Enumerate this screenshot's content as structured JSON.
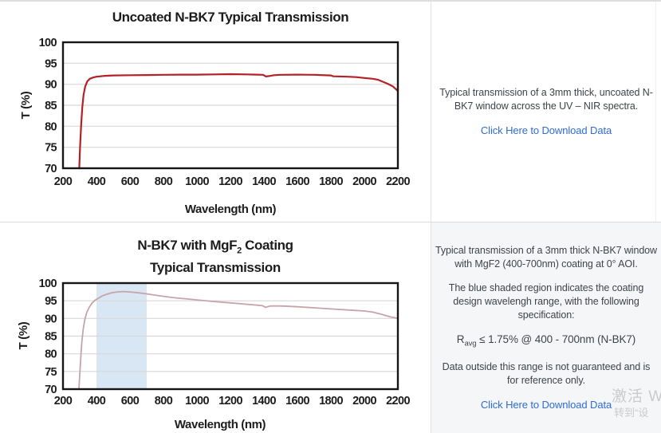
{
  "colors": {
    "uncoated_curve": "#b42025",
    "coated_curve": "#c7a4a9",
    "shaded_region": "#d8e7f3",
    "gridline": "#d8d8d8",
    "plot_border": "#161616",
    "link": "#2f6bd9",
    "body_text": "#3f434a",
    "bottom_cell_bg": "#f5f6f7"
  },
  "right_top": {
    "description": "Typical transmission of a 3mm thick, uncoated N-BK7 window across the UV – NIR spectra.",
    "link": "Click Here to Download Data"
  },
  "right_bottom": {
    "p1": "Typical transmission of a 3mm thick N-BK7 window with MgF2 (400-700nm) coating at 0° AOI.",
    "p2": "The blue shaded region indicates the coating design wavelengh range, with the following specification:",
    "spec_pre": "R",
    "spec_sub": "avg",
    "spec_post": " ≤ 1.75% @ 400 - 700nm (N-BK7)",
    "p4": "Data outside this range is not guaranteed and is for reference only.",
    "link": "Click Here to Download Data"
  },
  "watermark": {
    "line1": "激活 W",
    "line2": "转到“设"
  },
  "chart_data": [
    {
      "type": "line",
      "title": "Uncoated N-BK7 Typical Transmission",
      "xlabel": "Wavelength (nm)",
      "ylabel": "T (%)",
      "xlim": [
        200,
        2200
      ],
      "ylim": [
        70,
        100
      ],
      "xticks": [
        200,
        400,
        600,
        800,
        1000,
        1200,
        1400,
        1600,
        1800,
        2000,
        2200
      ],
      "yticks": [
        70,
        75,
        80,
        85,
        90,
        95,
        100
      ],
      "grid": "horizontal-only",
      "legend": "none",
      "line_color": "#b42025",
      "line_width": 2.2,
      "series": [
        {
          "name": "Uncoated N-BK7 transmission",
          "x": [
            297,
            302,
            308,
            315,
            323,
            333,
            345,
            360,
            380,
            400,
            450,
            500,
            600,
            700,
            800,
            900,
            1000,
            1100,
            1200,
            1300,
            1360,
            1395,
            1412,
            1430,
            1460,
            1500,
            1600,
            1700,
            1800,
            1815,
            1900,
            1950,
            2000,
            2050,
            2080,
            2110,
            2140,
            2170,
            2200
          ],
          "y": [
            70,
            75,
            80,
            84.5,
            87.5,
            89.5,
            90.7,
            91.3,
            91.6,
            91.8,
            92.0,
            92.1,
            92.15,
            92.2,
            92.25,
            92.3,
            92.3,
            92.35,
            92.4,
            92.35,
            92.3,
            92.25,
            91.85,
            91.95,
            92.15,
            92.25,
            92.3,
            92.25,
            92.1,
            91.9,
            91.8,
            91.7,
            91.5,
            91.3,
            91.1,
            90.6,
            90.1,
            89.5,
            88.4
          ]
        }
      ]
    },
    {
      "type": "line",
      "title": "N-BK7 with MgF2 Coating Typical Transmission",
      "title_display": {
        "pre": "N-BK7 with MgF",
        "sub": "2",
        "post": " Coating",
        "line2": "Typical Transmission"
      },
      "xlabel": "Wavelength (nm)",
      "ylabel": "T (%)",
      "xlim": [
        200,
        2200
      ],
      "ylim": [
        70,
        100
      ],
      "xticks": [
        200,
        400,
        600,
        800,
        1000,
        1200,
        1400,
        1600,
        1800,
        2000,
        2200
      ],
      "yticks": [
        70,
        75,
        80,
        85,
        90,
        95,
        100
      ],
      "grid": "horizontal-only",
      "legend": "none",
      "line_color": "#c7a4a9",
      "line_width": 1.8,
      "shaded_region": {
        "x": [
          400,
          700
        ],
        "color": "#d8e7f3",
        "label": "coating design wavelength range"
      },
      "series": [
        {
          "name": "N-BK7 with MgF2 coating transmission",
          "x": [
            295,
            300,
            306,
            313,
            321,
            331,
            343,
            357,
            373,
            390,
            410,
            435,
            465,
            495,
            525,
            560,
            600,
            650,
            700,
            750,
            800,
            850,
            900,
            950,
            1000,
            1100,
            1200,
            1300,
            1360,
            1392,
            1410,
            1435,
            1470,
            1520,
            1600,
            1700,
            1800,
            1900,
            2000,
            2050,
            2100,
            2150,
            2200
          ],
          "y": [
            70,
            74,
            79,
            83.5,
            87,
            89.8,
            91.8,
            93.2,
            94.3,
            95.1,
            95.7,
            96.4,
            96.9,
            97.3,
            97.5,
            97.6,
            97.5,
            97.25,
            96.95,
            96.6,
            96.25,
            95.95,
            95.7,
            95.5,
            95.25,
            94.8,
            94.4,
            94.0,
            93.75,
            93.6,
            93.15,
            93.5,
            93.55,
            93.5,
            93.3,
            93.0,
            92.7,
            92.4,
            92.1,
            91.8,
            91.2,
            90.5,
            90.0
          ]
        }
      ]
    }
  ]
}
